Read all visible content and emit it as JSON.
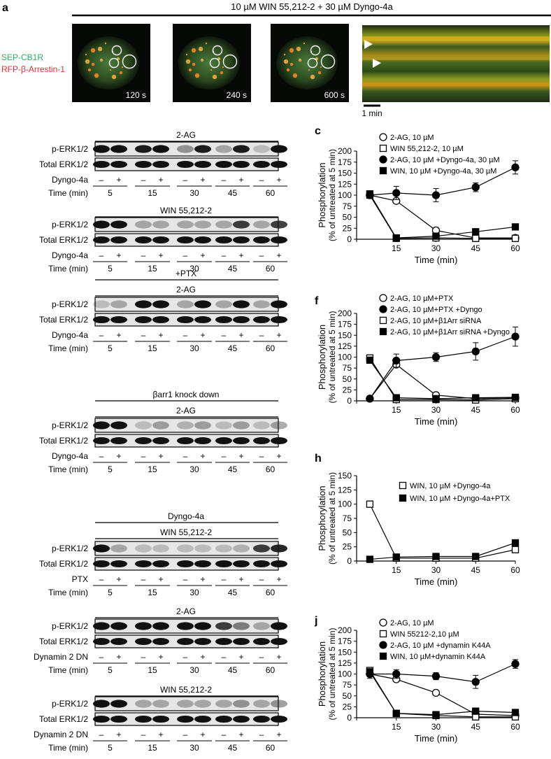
{
  "panel_a": {
    "letter": "a",
    "treatment": "10 µM WIN 55,212-2 + 30 µM Dyngo-4a",
    "label_green": "SEP-CB1R",
    "label_red": "RFP-β-Arrestin-1",
    "times": [
      "120 s",
      "240 s",
      "600 s"
    ],
    "scale_label": "1 min",
    "colors": {
      "green": "#3fd17a",
      "red": "#ff3b4a",
      "circle": "#ffffff"
    }
  },
  "blot_common": {
    "row_perk": "p-ERK1/2",
    "row_total": "Total ERK1/2",
    "row_time": "Time (min)",
    "times": [
      "5",
      "15",
      "30",
      "45",
      "60"
    ],
    "minus": "–",
    "plus": "+"
  },
  "panels": {
    "b": {
      "letter": "b",
      "header1": "2-AG",
      "treat1": "Dyngo-4a",
      "header2": "WIN 55,212-2",
      "treat2": "Dyngo-4a"
    },
    "d": {
      "letter": "d",
      "header_top": "+PTX",
      "header": "2-AG",
      "treat": "Dyngo-4a"
    },
    "e": {
      "letter": "e",
      "header_top": "βarr1 knock down",
      "header": "2-AG",
      "treat": "Dyngo-4a"
    },
    "g": {
      "letter": "g",
      "header_top": "Dyngo-4a",
      "header": "WIN 55,212-2",
      "treat": "PTX"
    },
    "i": {
      "letter": "i",
      "header1": "2-AG",
      "treat1": "Dynamin 2 DN",
      "header2": "WIN 55,212-2",
      "treat2": "Dynamin 2 DN"
    }
  },
  "chart_data": [
    {
      "panel": "c",
      "type": "line",
      "x": [
        5,
        15,
        30,
        45,
        60
      ],
      "xlabel": "Time (min)",
      "ylabel_1": "Phosphorylation",
      "ylabel_2": "(% of untreated at 5 min)",
      "ylim": [
        0,
        200
      ],
      "yticks": [
        0,
        25,
        50,
        75,
        100,
        125,
        150,
        175,
        200
      ],
      "legend_position": "top-right",
      "series": [
        {
          "name": "2-AG, 10 µM",
          "marker": "open-circle",
          "values": [
            100,
            87,
            20,
            3,
            3
          ],
          "err": [
            0,
            5,
            0,
            0,
            0
          ]
        },
        {
          "name": "WIN 55,212-2, 10 µM",
          "marker": "open-square",
          "values": [
            100,
            2,
            3,
            2,
            2
          ],
          "err": [
            0,
            0,
            0,
            0,
            0
          ]
        },
        {
          "name": "2-AG, 10 µM +Dyngo-4a, 30 µM",
          "marker": "filled-circle",
          "values": [
            100,
            105,
            100,
            118,
            163
          ],
          "err": [
            0,
            15,
            15,
            10,
            15
          ]
        },
        {
          "name": "WIN, 10 µM +Dyngo-4a, 30 µM",
          "marker": "filled-square",
          "values": [
            103,
            3,
            7,
            17,
            28
          ],
          "err": [
            0,
            0,
            0,
            0,
            0
          ]
        }
      ]
    },
    {
      "panel": "f",
      "type": "line",
      "x": [
        5,
        15,
        30,
        45,
        60
      ],
      "xlabel": "Time (min)",
      "ylabel_1": "Phosphorylation",
      "ylabel_2": "(% of untreated at 5 min)",
      "ylim": [
        0,
        200
      ],
      "yticks": [
        0,
        25,
        50,
        75,
        100,
        125,
        150,
        175,
        200
      ],
      "legend_position": "top-right",
      "series": [
        {
          "name": "2-AG, 10 µM+PTX",
          "marker": "open-circle",
          "values": [
            5,
            83,
            13,
            5,
            7
          ],
          "err": [
            0,
            0,
            0,
            0,
            0
          ]
        },
        {
          "name": "2-AG, 10 µM+PTX +Dyngo",
          "marker": "filled-circle",
          "values": [
            5,
            92,
            100,
            113,
            147
          ],
          "err": [
            5,
            15,
            10,
            20,
            22
          ]
        },
        {
          "name": "2-AG, 10 µM+β1Arr siRNA",
          "marker": "open-square",
          "values": [
            98,
            3,
            3,
            2,
            5
          ],
          "err": [
            0,
            0,
            0,
            0,
            0
          ]
        },
        {
          "name": "2-AG, 10 µM+β1Arr siRNA +Dyngo",
          "marker": "filled-square",
          "values": [
            93,
            7,
            5,
            7,
            8
          ],
          "err": [
            0,
            0,
            0,
            0,
            0
          ]
        }
      ]
    },
    {
      "panel": "h",
      "type": "line",
      "x": [
        5,
        15,
        30,
        45,
        60
      ],
      "xlabel": "Time (min)",
      "ylabel_1": "Phosphorylation",
      "ylabel_2": "(% of untreated at 5 min)",
      "ylim": [
        0,
        150
      ],
      "yticks": [
        0,
        25,
        50,
        75,
        100,
        125,
        150
      ],
      "legend_position": "top-right",
      "series": [
        {
          "name": "WIN, 10 µM +Dyngo-4a",
          "marker": "open-square",
          "values": [
            100,
            5,
            5,
            5,
            20
          ],
          "err": [
            0,
            0,
            0,
            0,
            0
          ]
        },
        {
          "name": "WIN, 10 µM +Dyngo-4a+PTX",
          "marker": "filled-square",
          "values": [
            3,
            7,
            8,
            8,
            32
          ],
          "err": [
            0,
            0,
            0,
            0,
            0
          ]
        }
      ]
    },
    {
      "panel": "j",
      "type": "line",
      "x": [
        5,
        15,
        30,
        45,
        60
      ],
      "xlabel": "Time (min)",
      "ylabel_1": "Phosphorylation",
      "ylabel_2": "(% of untreated at 5 min)",
      "ylim": [
        0,
        200
      ],
      "yticks": [
        0,
        25,
        50,
        75,
        100,
        125,
        150,
        175,
        200
      ],
      "legend_position": "top-right",
      "series": [
        {
          "name": "2-AG, 10 µM",
          "marker": "open-circle",
          "values": [
            100,
            88,
            57,
            8,
            5
          ],
          "err": [
            0,
            0,
            5,
            0,
            0
          ]
        },
        {
          "name": "WIN 55212-2,10 µM",
          "marker": "open-square",
          "values": [
            108,
            10,
            5,
            2,
            2
          ],
          "err": [
            0,
            0,
            0,
            0,
            0
          ]
        },
        {
          "name": "2-AG, 10 µM +dynamin K44A",
          "marker": "filled-circle",
          "values": [
            100,
            100,
            95,
            82,
            123
          ],
          "err": [
            10,
            10,
            8,
            15,
            10
          ]
        },
        {
          "name": "WIN, 10 µM+dynamin K44A",
          "marker": "filled-square",
          "values": [
            105,
            10,
            7,
            15,
            12
          ],
          "err": [
            0,
            0,
            0,
            0,
            0
          ]
        }
      ]
    }
  ]
}
